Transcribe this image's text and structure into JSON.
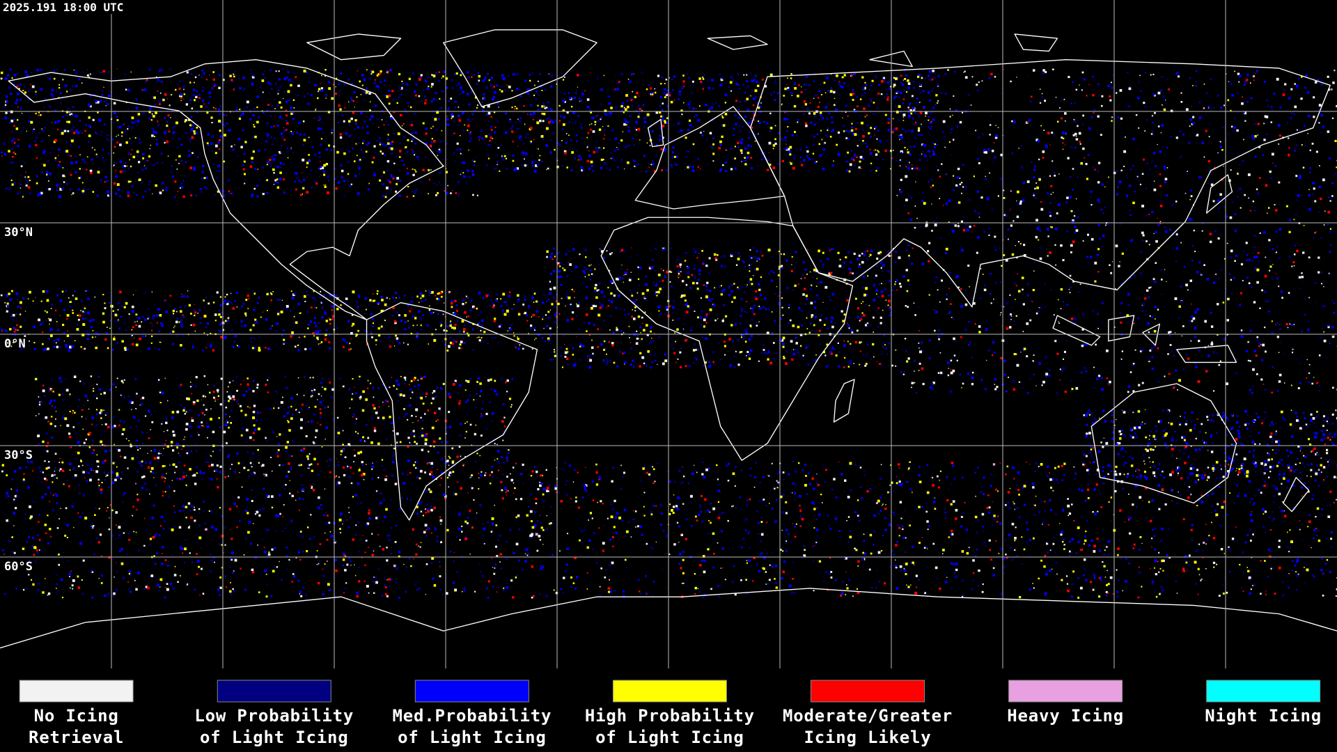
{
  "header": {
    "timestamp": "2025.191 18:00 UTC"
  },
  "map": {
    "lat_labels": [
      "30°N",
      "0°N",
      "30°S",
      "60°S"
    ]
  },
  "legend": {
    "items": [
      {
        "lines": [
          "No Icing",
          "Retrieval"
        ],
        "color": "#f2f2f2"
      },
      {
        "lines": [
          "Low Probability",
          "of Light Icing"
        ],
        "color": "#000080"
      },
      {
        "lines": [
          "Med.Probability",
          "of Light Icing"
        ],
        "color": "#0000ff"
      },
      {
        "lines": [
          "High Probability",
          "of Light Icing"
        ],
        "color": "#ffff00"
      },
      {
        "lines": [
          "Moderate/Greater",
          "Icing Likely"
        ],
        "color": "#ff0000"
      },
      {
        "lines": [
          "Heavy Icing"
        ],
        "color": "#e8a0e0"
      },
      {
        "lines": [
          "Night Icing"
        ],
        "color": "#00ffff"
      }
    ]
  }
}
